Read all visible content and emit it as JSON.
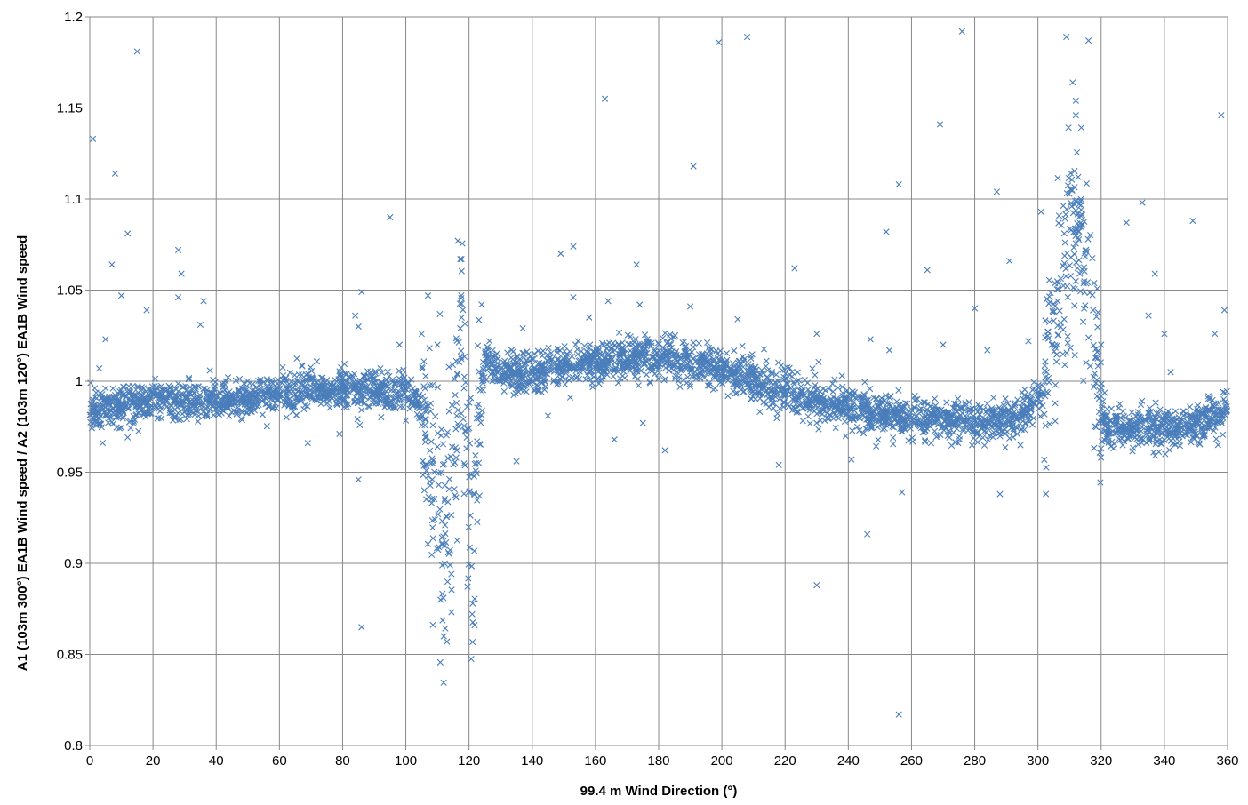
{
  "chart_data": {
    "type": "scatter",
    "title": "",
    "xlabel": "99.4 m Wind Direction (°)",
    "ylabel": "A1 (103m 300°) EA1B Wind speed / A2 (103m 120°) EA1B Wind speed",
    "xlim": [
      0,
      360
    ],
    "ylim": [
      0.8,
      1.2
    ],
    "xticks": [
      0,
      20,
      40,
      60,
      80,
      100,
      120,
      140,
      160,
      180,
      200,
      220,
      240,
      260,
      280,
      300,
      320,
      340,
      360
    ],
    "yticks": [
      0.8,
      0.85,
      0.9,
      0.95,
      1,
      1.05,
      1.1,
      1.15,
      1.2
    ],
    "xtick_labels": [
      "0",
      "20",
      "40",
      "60",
      "80",
      "100",
      "120",
      "140",
      "160",
      "180",
      "200",
      "220",
      "240",
      "260",
      "280",
      "300",
      "320",
      "340",
      "360"
    ],
    "ytick_labels": [
      "0.8",
      "0.85",
      "0.9",
      "0.95",
      "1",
      "1.05",
      "1.1",
      "1.15",
      "1.2"
    ],
    "grid": true,
    "legend": "none",
    "marker": "x",
    "series": [
      {
        "color": "#4A7EBB",
        "trend": [
          [
            0,
            0.984
          ],
          [
            10,
            0.987
          ],
          [
            20,
            0.989
          ],
          [
            30,
            0.989
          ],
          [
            40,
            0.989
          ],
          [
            50,
            0.99
          ],
          [
            60,
            0.994
          ],
          [
            70,
            0.996
          ],
          [
            80,
            0.995
          ],
          [
            90,
            0.994
          ],
          [
            100,
            0.993
          ],
          [
            103,
            0.99
          ],
          [
            106,
            0.975
          ],
          [
            108,
            0.955
          ],
          [
            110,
            0.935
          ],
          [
            112,
            0.9
          ],
          [
            114,
            0.93
          ],
          [
            116,
            0.99
          ],
          [
            117,
            1.02
          ],
          [
            118,
            1.0
          ],
          [
            119,
            0.97
          ],
          [
            120,
            0.93
          ],
          [
            121,
            0.91
          ],
          [
            122,
            0.94
          ],
          [
            123,
            0.975
          ],
          [
            124,
            0.995
          ],
          [
            125,
            1.01
          ],
          [
            126,
            1.015
          ],
          [
            128,
            1.004
          ],
          [
            140,
            1.004
          ],
          [
            150,
            1.007
          ],
          [
            160,
            1.01
          ],
          [
            170,
            1.013
          ],
          [
            180,
            1.013
          ],
          [
            190,
            1.01
          ],
          [
            200,
            1.006
          ],
          [
            210,
            1.0
          ],
          [
            220,
            0.994
          ],
          [
            230,
            0.99
          ],
          [
            240,
            0.986
          ],
          [
            250,
            0.982
          ],
          [
            260,
            0.98
          ],
          [
            270,
            0.978
          ],
          [
            280,
            0.978
          ],
          [
            290,
            0.978
          ],
          [
            295,
            0.982
          ],
          [
            300,
            0.99
          ],
          [
            303,
            1.005
          ],
          [
            306,
            1.03
          ],
          [
            308,
            1.055
          ],
          [
            310,
            1.075
          ],
          [
            312,
            1.09
          ],
          [
            314,
            1.08
          ],
          [
            316,
            1.05
          ],
          [
            318,
            1.02
          ],
          [
            320,
            0.985
          ],
          [
            322,
            0.976
          ],
          [
            330,
            0.973
          ],
          [
            340,
            0.974
          ],
          [
            350,
            0.977
          ],
          [
            360,
            0.983
          ]
        ],
        "outliers": [
          [
            1,
            1.133
          ],
          [
            8,
            1.114
          ],
          [
            12,
            1.081
          ],
          [
            15,
            1.181
          ],
          [
            7,
            1.064
          ],
          [
            10,
            1.047
          ],
          [
            18,
            1.039
          ],
          [
            28,
            1.072
          ],
          [
            29,
            1.059
          ],
          [
            28,
            1.046
          ],
          [
            36,
            1.044
          ],
          [
            35,
            1.031
          ],
          [
            5,
            1.023
          ],
          [
            3,
            1.007
          ],
          [
            69,
            0.966
          ],
          [
            79,
            0.971
          ],
          [
            85,
            0.946
          ],
          [
            86,
            0.865
          ],
          [
            86,
            1.049
          ],
          [
            95,
            1.09
          ],
          [
            84,
            1.036
          ],
          [
            85,
            1.03
          ],
          [
            107,
            1.047
          ],
          [
            113,
            0.857
          ],
          [
            112,
            0.86
          ],
          [
            111,
            0.88
          ],
          [
            110,
            1.02
          ],
          [
            98,
            1.02
          ],
          [
            135,
            0.956
          ],
          [
            137,
            1.029
          ],
          [
            149,
            1.07
          ],
          [
            153,
            1.074
          ],
          [
            153,
            1.046
          ],
          [
            163,
            1.155
          ],
          [
            164,
            1.044
          ],
          [
            166,
            0.968
          ],
          [
            158,
            1.035
          ],
          [
            145,
            0.981
          ],
          [
            173,
            1.064
          ],
          [
            174,
            1.042
          ],
          [
            175,
            0.977
          ],
          [
            182,
            0.962
          ],
          [
            190,
            1.041
          ],
          [
            191,
            1.118
          ],
          [
            199,
            1.186
          ],
          [
            208,
            1.189
          ],
          [
            205,
            1.034
          ],
          [
            218,
            0.954
          ],
          [
            223,
            1.062
          ],
          [
            230,
            0.888
          ],
          [
            241,
            0.957
          ],
          [
            246,
            0.916
          ],
          [
            252,
            1.082
          ],
          [
            256,
            1.108
          ],
          [
            257,
            0.939
          ],
          [
            256,
            0.817
          ],
          [
            265,
            1.061
          ],
          [
            269,
            1.141
          ],
          [
            276,
            1.192
          ],
          [
            280,
            1.04
          ],
          [
            287,
            1.104
          ],
          [
            288,
            0.938
          ],
          [
            291,
            1.066
          ],
          [
            301,
            1.093
          ],
          [
            309,
            1.189
          ],
          [
            311,
            1.164
          ],
          [
            312,
            1.154
          ],
          [
            312,
            1.146
          ],
          [
            316,
            1.187
          ],
          [
            320,
            1.02
          ],
          [
            328,
            1.087
          ],
          [
            333,
            1.098
          ],
          [
            337,
            1.059
          ],
          [
            335,
            1.036
          ],
          [
            340,
            1.026
          ],
          [
            349,
            1.088
          ],
          [
            358,
            1.146
          ],
          [
            359,
            1.039
          ],
          [
            356,
            1.026
          ],
          [
            357,
            0.965
          ],
          [
            342,
            1.005
          ],
          [
            230,
            1.026
          ],
          [
            247,
            1.023
          ],
          [
            253,
            1.017
          ],
          [
            270,
            1.02
          ],
          [
            284,
            1.017
          ],
          [
            297,
            1.022
          ],
          [
            238,
            1.003
          ]
        ]
      }
    ]
  }
}
